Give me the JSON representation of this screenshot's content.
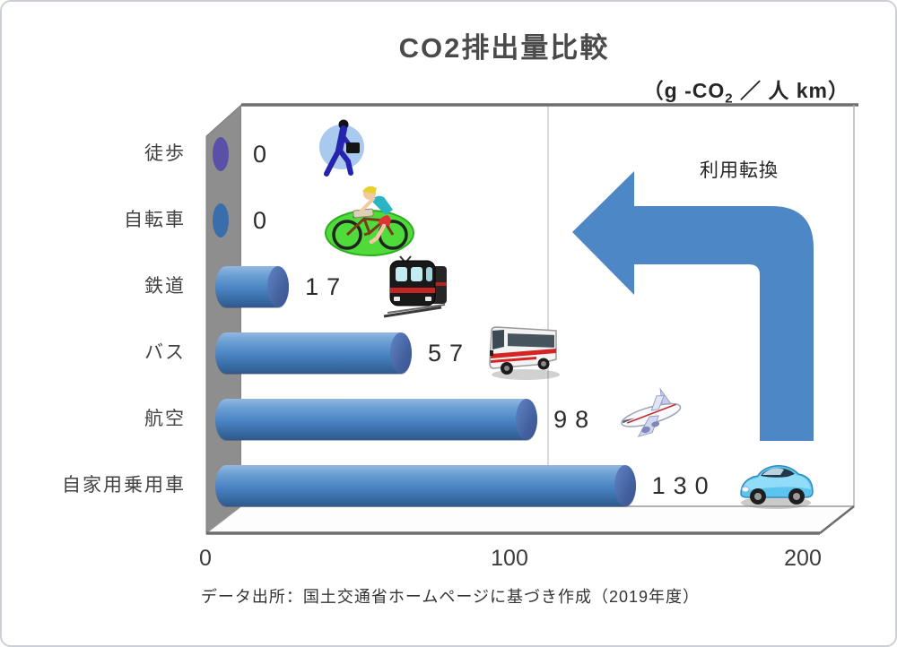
{
  "title": "CO2排出量比較",
  "unit": {
    "prefix": "（g -CO",
    "sub": "2",
    "suffix": " ／ 人 km）"
  },
  "annotation": {
    "label": "利用転換"
  },
  "axis_ticks": [
    "0",
    "100",
    "200"
  ],
  "source_note": "データ出所：国土交通省ホームページに基づき作成（2019年度）",
  "rows": [
    {
      "label": "徒歩",
      "value": "0",
      "icon": "walking-person-icon"
    },
    {
      "label": "自転車",
      "value": "0",
      "icon": "bicycle-icon"
    },
    {
      "label": "鉄道",
      "value": "17",
      "icon": "train-icon"
    },
    {
      "label": "バス",
      "value": "57",
      "icon": "bus-icon"
    },
    {
      "label": "航空",
      "value": "98",
      "icon": "airplane-icon"
    },
    {
      "label": "自家用乗用車",
      "value": "130",
      "icon": "car-icon"
    }
  ],
  "colors": {
    "bar": "#4f86c6",
    "bar_end_cap": "#44629f",
    "arrow": "#4e87c5",
    "side_wall": "#8e8e8e",
    "gridline": "#d9d9d9",
    "zero_marker_walk": "#5a50a8",
    "zero_marker_bicycle": "#3a6dab"
  },
  "chart_data": {
    "type": "bar",
    "orientation": "horizontal",
    "title": "CO2排出量比較",
    "unit_label": "（g-CO₂／人km）",
    "categories": [
      "徒歩",
      "自転車",
      "鉄道",
      "バス",
      "航空",
      "自家用乗用車"
    ],
    "values": [
      0,
      0,
      17,
      57,
      98,
      130
    ],
    "xlim": [
      0,
      200
    ],
    "xticks": [
      0,
      100,
      200
    ],
    "grid": "single vertical gridline at 100",
    "legend": "none",
    "annotation": "利用転換",
    "source": "データ出所：国土交通省ホームページに基づき作成（2019年度）"
  }
}
